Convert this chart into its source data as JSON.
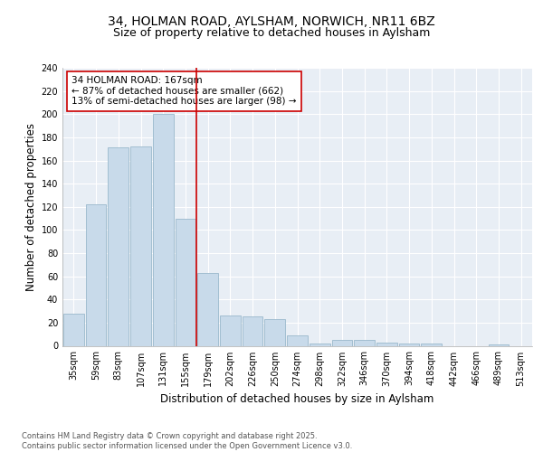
{
  "title1": "34, HOLMAN ROAD, AYLSHAM, NORWICH, NR11 6BZ",
  "title2": "Size of property relative to detached houses in Aylsham",
  "xlabel": "Distribution of detached houses by size in Aylsham",
  "ylabel": "Number of detached properties",
  "categories": [
    "35sqm",
    "59sqm",
    "83sqm",
    "107sqm",
    "131sqm",
    "155sqm",
    "179sqm",
    "202sqm",
    "226sqm",
    "250sqm",
    "274sqm",
    "298sqm",
    "322sqm",
    "346sqm",
    "370sqm",
    "394sqm",
    "418sqm",
    "442sqm",
    "466sqm",
    "489sqm",
    "513sqm"
  ],
  "values": [
    28,
    122,
    171,
    172,
    200,
    110,
    63,
    26,
    25,
    23,
    9,
    2,
    5,
    5,
    3,
    2,
    2,
    0,
    0,
    1,
    0
  ],
  "bar_color": "#c8daea",
  "bar_edge_color": "#9ab8cc",
  "vline_x": 5.5,
  "vline_color": "#cc0000",
  "annotation_text": "34 HOLMAN ROAD: 167sqm\n← 87% of detached houses are smaller (662)\n13% of semi-detached houses are larger (98) →",
  "annotation_box_color": "#ffffff",
  "annotation_box_edge": "#cc0000",
  "ylim": [
    0,
    240
  ],
  "yticks": [
    0,
    20,
    40,
    60,
    80,
    100,
    120,
    140,
    160,
    180,
    200,
    220,
    240
  ],
  "footer": "Contains HM Land Registry data © Crown copyright and database right 2025.\nContains public sector information licensed under the Open Government Licence v3.0.",
  "bg_color": "#ffffff",
  "plot_bg_color": "#e8eef5",
  "grid_color": "#ffffff",
  "title_fontsize": 10,
  "subtitle_fontsize": 9,
  "tick_fontsize": 7,
  "label_fontsize": 8.5,
  "footer_fontsize": 6,
  "annot_fontsize": 7.5
}
